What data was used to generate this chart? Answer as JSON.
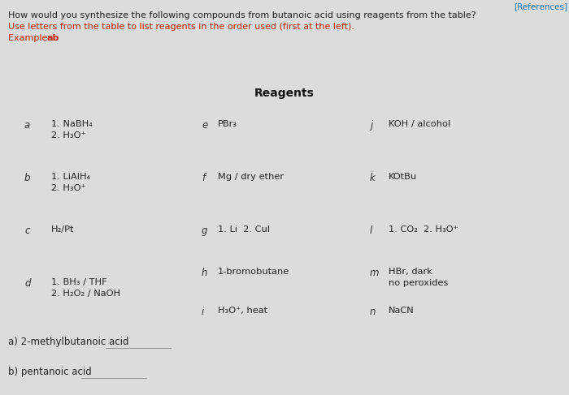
{
  "references_text": "[References]",
  "references_color": "#1a7abf",
  "title_line1": "How would you synthesize the following compounds from butanoic acid using reagents from the table?",
  "title_line2": "Use letters from the table to list reagents in the order used (first at the left).",
  "example_label": "Example: ",
  "example_bold": "ab",
  "title_color": "#222222",
  "instruction_color": "#cc2200",
  "reagents_header": "Reagents",
  "bg_color": "#dcdcdc",
  "col1": [
    {
      "letter": "a",
      "line1": "1. NaBH₄",
      "line2": "2. H₃O⁺"
    },
    {
      "letter": "b",
      "line1": "1. LiAlH₄",
      "line2": "2. H₃O⁺"
    },
    {
      "letter": "c",
      "line1": "H₂/Pt",
      "line2": ""
    },
    {
      "letter": "d",
      "line1": "1. BH₃ / THF",
      "line2": "2. H₂O₂ / NaOH"
    }
  ],
  "col2": [
    {
      "letter": "e",
      "line1": "PBr₃",
      "line2": ""
    },
    {
      "letter": "f",
      "line1": "Mg / dry ether",
      "line2": ""
    },
    {
      "letter": "g",
      "line1": "1. Li  2. CuI",
      "line2": ""
    },
    {
      "letter": "h",
      "line1": "1-bromobutane",
      "line2": ""
    },
    {
      "letter": "i",
      "line1": "H₃O⁺, heat",
      "line2": ""
    }
  ],
  "col3": [
    {
      "letter": "j",
      "line1": "KOH / alcohol",
      "line2": ""
    },
    {
      "letter": "k",
      "line1": "KOtBu",
      "line2": ""
    },
    {
      "letter": "l",
      "line1": "1. CO₂  2. H₃O⁺",
      "line2": ""
    },
    {
      "letter": "m",
      "line1": "HBr, dark",
      "line2": "no peroxides"
    },
    {
      "letter": "n",
      "line1": "NaCN",
      "line2": ""
    }
  ],
  "q_a": "a) 2-methylbutanoic acid",
  "q_b": "b) pentanoic acid",
  "fig_width": 7.0,
  "fig_height": 4.87,
  "dpi": 100
}
